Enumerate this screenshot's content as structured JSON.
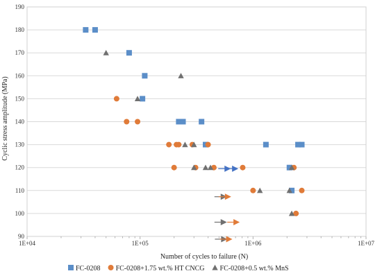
{
  "chart_data": {
    "type": "scatter",
    "title": "",
    "xlabel": "Number of cycles to failure (N)",
    "ylabel": "Cyclic stress amplitude (MPa)",
    "x_scale": "log",
    "xlim": [
      10000,
      10000000
    ],
    "ylim": [
      90,
      190
    ],
    "x_ticks": [
      10000,
      100000,
      1000000,
      10000000
    ],
    "x_tick_labels": [
      "1E+04",
      "1E+05",
      "1E+06",
      "1E+07"
    ],
    "y_ticks": [
      90,
      100,
      110,
      120,
      130,
      140,
      150,
      160,
      170,
      180,
      190
    ],
    "y_tick_labels": [
      "90",
      "100",
      "110",
      "120",
      "130",
      "140",
      "150",
      "160",
      "170",
      "180",
      "190"
    ],
    "grid": true,
    "legend_position": "bottom",
    "series": [
      {
        "name": "FC-0208",
        "marker": "square",
        "color": "#5b8ec8",
        "points": [
          {
            "x": 33000,
            "y": 180
          },
          {
            "x": 40000,
            "y": 180
          },
          {
            "x": 80000,
            "y": 170
          },
          {
            "x": 110000,
            "y": 160
          },
          {
            "x": 105000,
            "y": 150
          },
          {
            "x": 220000,
            "y": 140
          },
          {
            "x": 240000,
            "y": 140
          },
          {
            "x": 350000,
            "y": 140
          },
          {
            "x": 380000,
            "y": 130
          },
          {
            "x": 1300000,
            "y": 130
          },
          {
            "x": 2500000,
            "y": 130
          },
          {
            "x": 2700000,
            "y": 130
          },
          {
            "x": 2100000,
            "y": 120
          },
          {
            "x": 2200000,
            "y": 110
          }
        ]
      },
      {
        "name": "FC-0208+1.75 wt.% HT CNCG",
        "marker": "circle",
        "color": "#e07b39",
        "points": [
          {
            "x": 62000,
            "y": 150
          },
          {
            "x": 76000,
            "y": 140
          },
          {
            "x": 95000,
            "y": 140
          },
          {
            "x": 180000,
            "y": 130
          },
          {
            "x": 210000,
            "y": 130
          },
          {
            "x": 220000,
            "y": 130
          },
          {
            "x": 290000,
            "y": 130
          },
          {
            "x": 400000,
            "y": 130
          },
          {
            "x": 200000,
            "y": 120
          },
          {
            "x": 310000,
            "y": 120
          },
          {
            "x": 450000,
            "y": 120
          },
          {
            "x": 810000,
            "y": 120
          },
          {
            "x": 2300000,
            "y": 120
          },
          {
            "x": 1000000,
            "y": 110
          },
          {
            "x": 2700000,
            "y": 110
          },
          {
            "x": 2400000,
            "y": 100
          }
        ]
      },
      {
        "name": "FC-0208+0.5 wt.% MnS",
        "marker": "triangle",
        "color": "#707070",
        "points": [
          {
            "x": 50000,
            "y": 170
          },
          {
            "x": 230000,
            "y": 160
          },
          {
            "x": 95000,
            "y": 150
          },
          {
            "x": 250000,
            "y": 130
          },
          {
            "x": 300000,
            "y": 130
          },
          {
            "x": 300000,
            "y": 120
          },
          {
            "x": 380000,
            "y": 120
          },
          {
            "x": 420000,
            "y": 120
          },
          {
            "x": 2200000,
            "y": 120
          },
          {
            "x": 1150000,
            "y": 110
          },
          {
            "x": 2100000,
            "y": 110
          },
          {
            "x": 2200000,
            "y": 100
          }
        ]
      }
    ],
    "runouts": [
      {
        "x": 600000,
        "y": 119.5,
        "color": "#4472c4"
      },
      {
        "x": 700000,
        "y": 119.5,
        "color": "#4472c4"
      },
      {
        "x": 555000,
        "y": 107.3,
        "color": "#707070"
      },
      {
        "x": 605000,
        "y": 107.3,
        "color": "#e07b39"
      },
      {
        "x": 555000,
        "y": 96.2,
        "color": "#707070"
      },
      {
        "x": 720000,
        "y": 96.2,
        "color": "#e07b39"
      },
      {
        "x": 560000,
        "y": 88.8,
        "color": "#707070"
      },
      {
        "x": 620000,
        "y": 88.8,
        "color": "#e07b39"
      }
    ]
  }
}
